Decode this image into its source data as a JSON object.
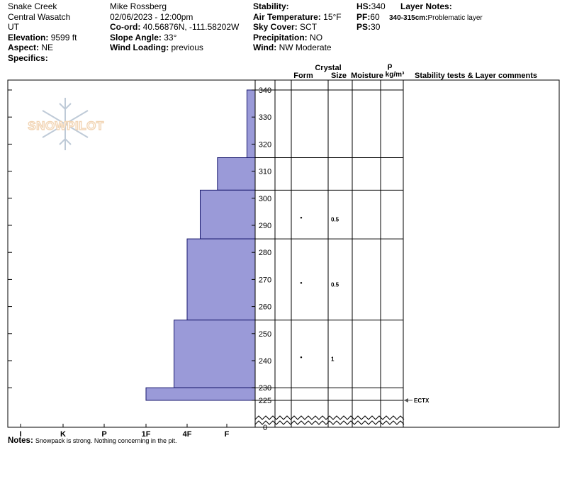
{
  "site": {
    "name": "Snake Creek",
    "range": "Central Wasatch",
    "state": "UT",
    "elevation_label": "Elevation:",
    "elevation": "9599 ft",
    "aspect_label": "Aspect:",
    "aspect": "NE",
    "specifics_label": "Specifics:"
  },
  "obs": {
    "observer": "Mike Rossberg",
    "datetime": "02/06/2023 - 12:00pm",
    "coord_label": "Co-ord:",
    "coord": "40.56876N, -111.58202W",
    "slope_label": "Slope Angle:",
    "slope": "33°",
    "wind_loading_label": "Wind Loading:",
    "wind_loading": "previous"
  },
  "conditions": {
    "stability_label": "Stability:",
    "stability": "",
    "air_temp_label": "Air Temperature:",
    "air_temp": "15°F",
    "sky_label": "Sky Cover:",
    "sky": "SCT",
    "precip_label": "Precipitation:",
    "precip": "NO",
    "wind_label": "Wind:",
    "wind": "NW Moderate"
  },
  "depths": {
    "hs_label": "HS:",
    "hs": "340",
    "pf_label": "PF:",
    "pf": "60",
    "ps_label": "PS:",
    "ps": "30"
  },
  "layer_notes": {
    "title": "Layer Notes:",
    "range": "340-315cm:",
    "text": "Problematic layer"
  },
  "table_headers": {
    "crystal": "Crystal",
    "form": "Form",
    "size": "Size",
    "moisture": "Moisture",
    "rho": "ρ",
    "density_unit": "kg/m³",
    "stability_comments": "Stability tests & Layer comments"
  },
  "watermark": "SNOWPILOT",
  "notes": {
    "label": "Notes:",
    "text": "Snowpack is strong. Nothing concerning in the pit."
  },
  "chart_data": {
    "type": "bar",
    "title": "",
    "ylabel": "",
    "xlabel": "",
    "ylim": [
      225,
      340
    ],
    "y_axis_break": true,
    "y_ticks": [
      340,
      330,
      320,
      310,
      300,
      290,
      280,
      270,
      260,
      250,
      240,
      230,
      225,
      0
    ],
    "hardness_scale": [
      "I",
      "K",
      "P",
      "1F",
      "4F",
      "F"
    ],
    "layers": [
      {
        "top": 340,
        "bottom": 315,
        "hardness": "F-",
        "form": "",
        "size": "",
        "moisture": "",
        "density": ""
      },
      {
        "top": 315,
        "bottom": 303,
        "hardness": "F+",
        "form": "",
        "size": "",
        "moisture": "",
        "density": ""
      },
      {
        "top": 303,
        "bottom": 285,
        "hardness": "4F-",
        "form": "•",
        "size": "0.5",
        "moisture": "",
        "density": ""
      },
      {
        "top": 285,
        "bottom": 255,
        "hardness": "4F",
        "form": "•",
        "size": "0.5",
        "moisture": "",
        "density": ""
      },
      {
        "top": 255,
        "bottom": 230,
        "hardness": "4F+",
        "form": "•",
        "size": "1",
        "moisture": "",
        "density": ""
      },
      {
        "top": 230,
        "bottom": 225,
        "hardness": "1F",
        "form": "",
        "size": "",
        "moisture": "",
        "density": ""
      }
    ],
    "tests": [
      {
        "depth": 225,
        "label": "ECTX"
      }
    ],
    "colors": {
      "bar_fill": "#9a9ad8",
      "bar_stroke": "#1a1a6e"
    }
  }
}
